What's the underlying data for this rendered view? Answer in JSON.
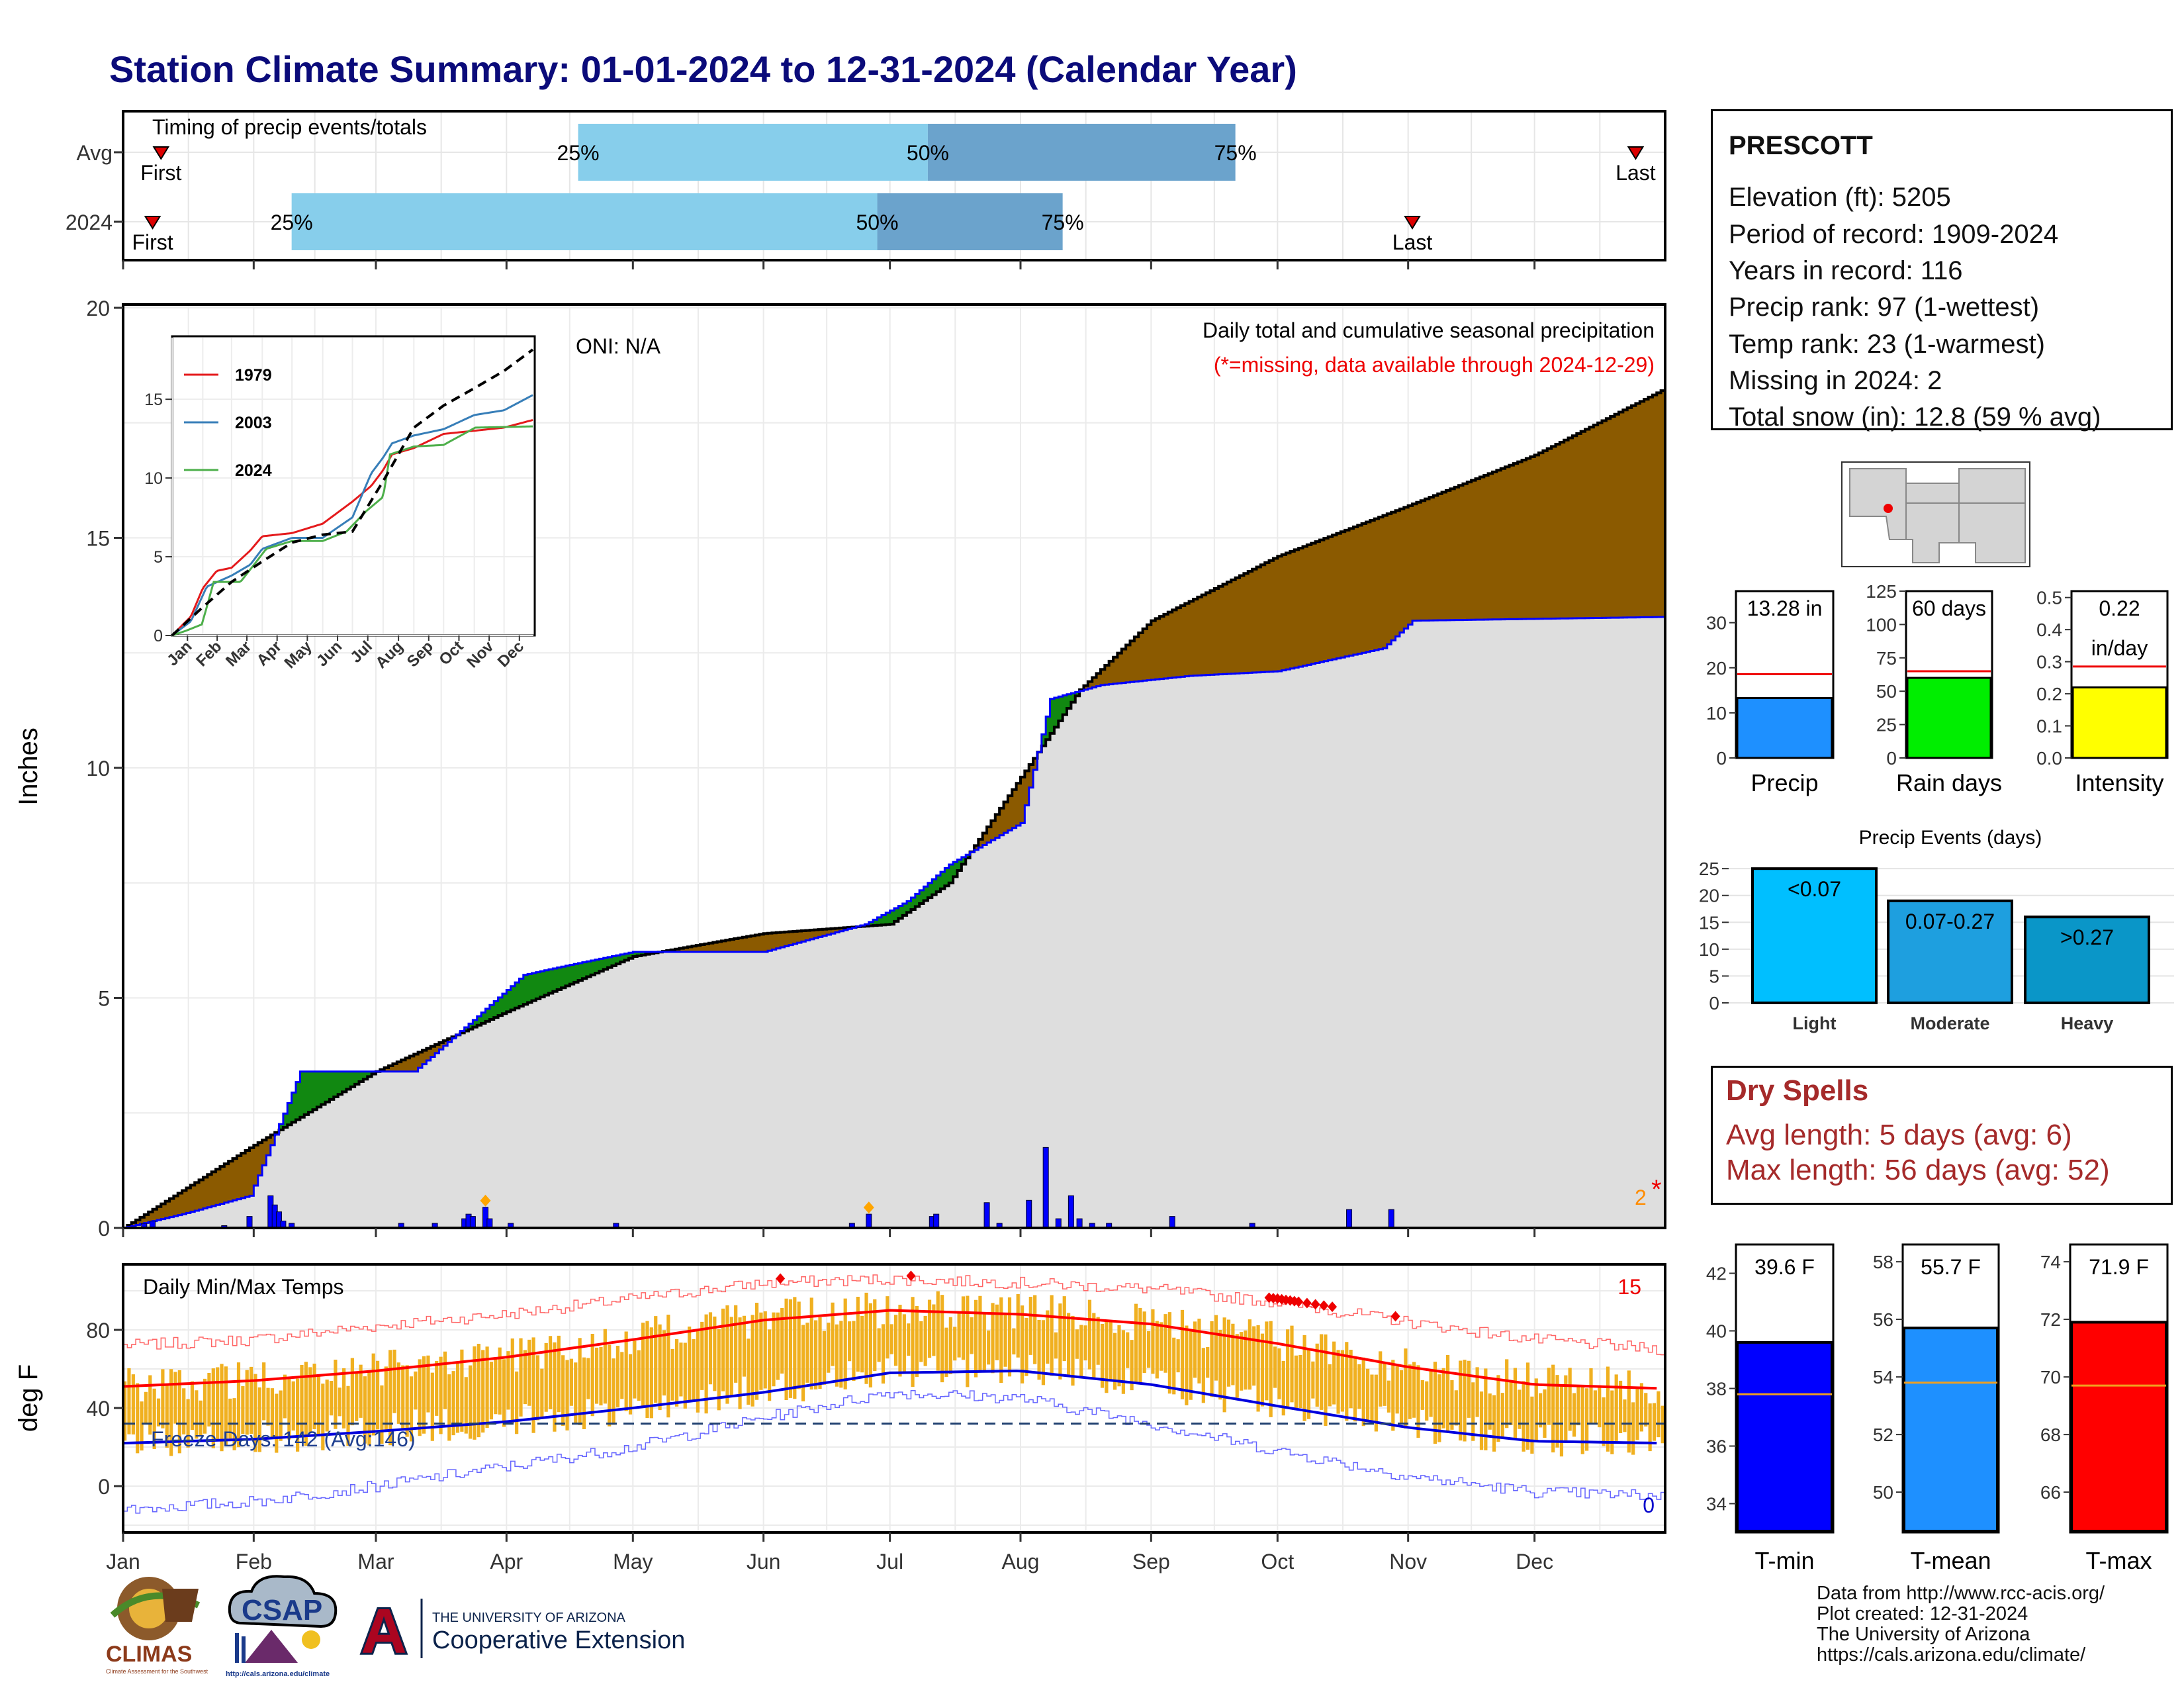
{
  "title": "Station Climate Summary: 01-01-2024 to 12-31-2024 (Calendar Year)",
  "timing": {
    "title": "Timing of precip events/totals",
    "rows": [
      {
        "label": "Avg",
        "first": "First",
        "last": "Last",
        "q25": "25%",
        "q50": "50%",
        "q75": "75%",
        "first_date": "2024-01-10",
        "last_date": "2024-12-25",
        "q25_date": "2024-04-18",
        "q50_date": "2024-07-10",
        "q75_date": "2024-09-21"
      },
      {
        "label": "2024",
        "first": "First",
        "last": "Last",
        "q25": "25%",
        "q50": "50%",
        "q75": "75%",
        "first_date": "2024-01-08",
        "last_date": "2024-11-02",
        "q25_date": "2024-02-10",
        "q50_date": "2024-06-28",
        "q75_date": "2024-08-11"
      }
    ]
  },
  "month_labels": [
    "Jan",
    "Feb",
    "Mar",
    "Apr",
    "May",
    "Jun",
    "Jul",
    "Aug",
    "Sep",
    "Oct",
    "Nov",
    "Dec"
  ],
  "precip_panel": {
    "ylabel": "Inches",
    "y_ticks": [
      "0",
      "5",
      "10",
      "15",
      "20"
    ],
    "oni": "ONI: N/A",
    "title": "Daily total and cumulative seasonal precipitation",
    "missing_note": "(*=missing, data available through 2024-12-29)",
    "missing_count": "2",
    "missing_star": "*"
  },
  "inset": {
    "y_ticks": [
      "0",
      "5",
      "10",
      "15"
    ],
    "month_ticks": [
      "Jan",
      "Feb",
      "Mar",
      "Apr",
      "May",
      "Jun",
      "Jul",
      "Aug",
      "Sep",
      "Oct",
      "Nov",
      "Dec"
    ],
    "legend": [
      "1979",
      "2003",
      "2024"
    ]
  },
  "temp_panel": {
    "ylabel": "deg F",
    "title": "Daily Min/Max Temps",
    "y_ticks": [
      "0",
      "40",
      "80"
    ],
    "freeze": "Freeze Days: 142 (Avg:146)",
    "record_high_count": "15",
    "record_low_count": "0"
  },
  "station": {
    "name": "PRESCOTT",
    "lines": [
      "Elevation (ft): 5205",
      "Period of record: 1909-2024",
      "Years in record: 116",
      "Precip rank: 97 (1-wettest)",
      "Temp rank: 23 (1-warmest)",
      "Missing in 2024: 2",
      "Total snow (in): 12.8 (59 % avg)"
    ]
  },
  "summary_bars": [
    {
      "label": "Precip",
      "value_text": "13.28 in",
      "value": 13.28,
      "avg": 18.6,
      "ymax": 37,
      "ticks": [
        "0",
        "10",
        "20",
        "30"
      ],
      "tick_values": [
        0,
        10,
        20,
        30
      ],
      "color": "#1e90ff"
    },
    {
      "label": "Rain days",
      "value_text": "60 days",
      "value": 60,
      "avg": 65,
      "ymax": 125,
      "ticks": [
        "0",
        "25",
        "50",
        "75",
        "100",
        "125"
      ],
      "tick_values": [
        0,
        25,
        50,
        75,
        100,
        125
      ],
      "color": "#00ee00"
    },
    {
      "label": "Intensity",
      "value_text": "0.22",
      "value_text2": "in/day",
      "value": 0.22,
      "avg": 0.285,
      "ymax": 0.52,
      "ticks": [
        "0.0",
        "0.1",
        "0.2",
        "0.3",
        "0.4",
        "0.5"
      ],
      "tick_values": [
        0,
        0.1,
        0.2,
        0.3,
        0.4,
        0.5
      ],
      "color": "#ffff00"
    }
  ],
  "precip_events": {
    "title": "Precip Events (days)",
    "y_ticks": [
      "0",
      "5",
      "10",
      "15",
      "20",
      "25"
    ],
    "bars": [
      {
        "category": "Light",
        "label": "<0.07",
        "value": 25,
        "color": "#00bfff"
      },
      {
        "category": "Moderate",
        "label": "0.07-0.27",
        "value": 19,
        "color": "#1e9fdf"
      },
      {
        "category": "Heavy",
        "label": ">0.27",
        "value": 16,
        "color": "#0a96c8"
      }
    ]
  },
  "dry_spells": {
    "title": "Dry Spells",
    "avg_length": "Avg length: 5 days (avg: 6)",
    "max_length": "Max length: 56 days (avg: 52)"
  },
  "temp_bars": [
    {
      "label": "T-min",
      "value_text": "39.6 F",
      "value": 39.6,
      "avg": 37.8,
      "ymin": 33,
      "ymax": 43,
      "ticks": [
        "34",
        "36",
        "38",
        "40",
        "42"
      ],
      "tick_values": [
        34,
        36,
        38,
        40,
        42
      ],
      "color": "#0000ff"
    },
    {
      "label": "T-mean",
      "value_text": "55.7 F",
      "value": 55.7,
      "avg": 53.8,
      "ymin": 48.6,
      "ymax": 58.6,
      "ticks": [
        "50",
        "52",
        "54",
        "56",
        "58"
      ],
      "tick_values": [
        50,
        52,
        54,
        56,
        58
      ],
      "color": "#1e90ff"
    },
    {
      "label": "T-max",
      "value_text": "71.9 F",
      "value": 71.9,
      "avg": 69.7,
      "ymin": 64.6,
      "ymax": 74.6,
      "ticks": [
        "66",
        "68",
        "70",
        "72",
        "74"
      ],
      "tick_values": [
        66,
        68,
        70,
        72,
        74
      ],
      "color": "#ff0000"
    }
  ],
  "footer": [
    "Data from http://www.rcc-acis.org/",
    "Plot created: 12-31-2024",
    "The University of Arizona",
    "https://cals.arizona.edu/climate/"
  ],
  "logos": {
    "climas": "CLIMAS",
    "climas_sub": "Climate Assessment for the Southwest",
    "csap": "CSAP",
    "csap_url": "http://cals.arizona.edu/climate",
    "ua_letter": "A",
    "ua_line1": "THE UNIVERSITY OF ARIZONA",
    "ua_line2": "Cooperative Extension"
  },
  "chart_data": [
    {
      "type": "area",
      "title": "Daily total and cumulative seasonal precipitation",
      "ylabel": "Inches",
      "ylim": [
        0,
        20
      ],
      "x_unit": "date",
      "series": [
        {
          "name": "2024",
          "x": [
            "2024-01-01",
            "2024-01-15",
            "2024-01-31",
            "2024-02-05",
            "2024-02-12",
            "2024-03-10",
            "2024-03-25",
            "2024-04-05",
            "2024-04-15",
            "2024-05-01",
            "2024-06-01",
            "2024-06-25",
            "2024-07-05",
            "2024-07-15",
            "2024-08-01",
            "2024-08-08",
            "2024-08-20",
            "2024-09-10",
            "2024-10-01",
            "2024-10-26",
            "2024-11-02",
            "2024-12-31"
          ],
          "y": [
            0,
            0.3,
            0.7,
            1.8,
            3.4,
            3.4,
            4.6,
            5.5,
            5.7,
            6.0,
            6.0,
            6.6,
            7.1,
            7.9,
            8.8,
            11.5,
            11.8,
            12.0,
            12.1,
            12.6,
            13.2,
            13.28
          ]
        },
        {
          "name": "Average cumulative",
          "x": [
            "2024-01-01",
            "2024-02-01",
            "2024-03-01",
            "2024-04-01",
            "2024-05-01",
            "2024-06-01",
            "2024-07-01",
            "2024-07-15",
            "2024-08-01",
            "2024-08-15",
            "2024-09-01",
            "2024-10-01",
            "2024-11-01",
            "2024-12-01",
            "2024-12-31"
          ],
          "y": [
            0,
            1.8,
            3.4,
            4.7,
            5.9,
            6.4,
            6.6,
            7.5,
            9.8,
            11.7,
            13.2,
            14.6,
            15.7,
            16.8,
            18.2
          ]
        }
      ],
      "daily_bars": [
        {
          "x": "2024-01-06",
          "y": 0.1
        },
        {
          "x": "2024-01-08",
          "y": 0.15
        },
        {
          "x": "2024-01-25",
          "y": 0.05
        },
        {
          "x": "2024-01-31",
          "y": 0.25
        },
        {
          "x": "2024-02-05",
          "y": 0.7
        },
        {
          "x": "2024-02-06",
          "y": 0.5
        },
        {
          "x": "2024-02-07",
          "y": 0.35
        },
        {
          "x": "2024-02-08",
          "y": 0.15
        },
        {
          "x": "2024-02-10",
          "y": 0.1
        },
        {
          "x": "2024-03-07",
          "y": 0.1
        },
        {
          "x": "2024-03-15",
          "y": 0.1
        },
        {
          "x": "2024-03-22",
          "y": 0.2
        },
        {
          "x": "2024-03-23",
          "y": 0.3
        },
        {
          "x": "2024-03-24",
          "y": 0.25
        },
        {
          "x": "2024-03-27",
          "y": 0.45
        },
        {
          "x": "2024-03-28",
          "y": 0.2
        },
        {
          "x": "2024-04-02",
          "y": 0.1
        },
        {
          "x": "2024-04-27",
          "y": 0.1
        },
        {
          "x": "2024-06-22",
          "y": 0.1
        },
        {
          "x": "2024-06-26",
          "y": 0.3
        },
        {
          "x": "2024-07-11",
          "y": 0.25
        },
        {
          "x": "2024-07-12",
          "y": 0.3
        },
        {
          "x": "2024-07-24",
          "y": 0.55
        },
        {
          "x": "2024-07-27",
          "y": 0.1
        },
        {
          "x": "2024-08-03",
          "y": 0.6
        },
        {
          "x": "2024-08-07",
          "y": 1.75
        },
        {
          "x": "2024-08-10",
          "y": 0.2
        },
        {
          "x": "2024-08-13",
          "y": 0.7
        },
        {
          "x": "2024-08-15",
          "y": 0.2
        },
        {
          "x": "2024-08-18",
          "y": 0.1
        },
        {
          "x": "2024-08-22",
          "y": 0.1
        },
        {
          "x": "2024-09-06",
          "y": 0.25
        },
        {
          "x": "2024-09-25",
          "y": 0.1
        },
        {
          "x": "2024-10-18",
          "y": 0.4
        },
        {
          "x": "2024-10-28",
          "y": 0.4
        }
      ]
    },
    {
      "type": "line",
      "title": "",
      "ylim": [
        0,
        19
      ],
      "x_unit": "date",
      "series": [
        {
          "name": "1979",
          "x": [
            "2024-01-01",
            "2024-01-20",
            "2024-02-01",
            "2024-02-15",
            "2024-03-01",
            "2024-03-20",
            "2024-04-01",
            "2024-05-01",
            "2024-06-01",
            "2024-07-01",
            "2024-07-20",
            "2024-08-01",
            "2024-08-10",
            "2024-09-01",
            "2024-10-01",
            "2024-11-01",
            "2024-12-01",
            "2024-12-31"
          ],
          "y": [
            0,
            1.2,
            3.0,
            4.1,
            4.3,
            5.4,
            6.3,
            6.5,
            7.1,
            8.5,
            9.5,
            10.5,
            11.5,
            11.9,
            12.8,
            13.0,
            13.2,
            13.7
          ]
        },
        {
          "name": "2003",
          "x": [
            "2024-01-01",
            "2024-01-20",
            "2024-02-05",
            "2024-03-01",
            "2024-03-20",
            "2024-04-01",
            "2024-05-01",
            "2024-06-01",
            "2024-07-01",
            "2024-07-20",
            "2024-08-01",
            "2024-08-10",
            "2024-09-01",
            "2024-10-01",
            "2024-11-01",
            "2024-12-01",
            "2024-12-31"
          ],
          "y": [
            0,
            0.9,
            3.1,
            3.8,
            4.5,
            5.5,
            6.2,
            6.2,
            7.5,
            10.3,
            11.3,
            12.2,
            12.7,
            13.1,
            14.0,
            14.3,
            15.3
          ]
        },
        {
          "name": "2024",
          "x": [
            "2024-01-01",
            "2024-01-15",
            "2024-01-31",
            "2024-02-05",
            "2024-02-12",
            "2024-03-10",
            "2024-03-25",
            "2024-04-05",
            "2024-05-01",
            "2024-06-01",
            "2024-06-25",
            "2024-07-15",
            "2024-08-01",
            "2024-08-08",
            "2024-09-01",
            "2024-10-01",
            "2024-11-02",
            "2024-12-31"
          ],
          "y": [
            0,
            0.3,
            0.7,
            1.8,
            3.4,
            3.4,
            4.6,
            5.5,
            6.0,
            6.0,
            6.6,
            7.9,
            8.8,
            11.5,
            12.0,
            12.1,
            13.2,
            13.28
          ]
        },
        {
          "name": "Average cumulative",
          "x": [
            "2024-01-01",
            "2024-02-01",
            "2024-03-01",
            "2024-04-01",
            "2024-05-01",
            "2024-06-01",
            "2024-07-01",
            "2024-08-01",
            "2024-09-01",
            "2024-10-01",
            "2024-11-01",
            "2024-12-01",
            "2024-12-31"
          ],
          "y": [
            0,
            1.8,
            3.4,
            4.7,
            5.9,
            6.4,
            6.6,
            9.8,
            13.2,
            14.6,
            15.7,
            16.8,
            18.2
          ]
        }
      ]
    },
    {
      "type": "line",
      "title": "Daily Min/Max Temps",
      "ylabel": "deg F",
      "ylim": [
        -25,
        110
      ],
      "x_unit": "date",
      "series": [
        {
          "name": "Average max",
          "x": [
            "2024-01-01",
            "2024-02-01",
            "2024-03-01",
            "2024-04-01",
            "2024-05-01",
            "2024-06-01",
            "2024-07-01",
            "2024-08-01",
            "2024-09-01",
            "2024-10-01",
            "2024-11-01",
            "2024-12-01",
            "2024-12-31"
          ],
          "y": [
            51,
            54,
            59,
            66,
            75,
            85,
            90,
            88,
            83,
            73,
            61,
            52,
            50
          ]
        },
        {
          "name": "Average min",
          "x": [
            "2024-01-01",
            "2024-02-01",
            "2024-03-01",
            "2024-04-01",
            "2024-05-01",
            "2024-06-01",
            "2024-07-01",
            "2024-08-01",
            "2024-09-01",
            "2024-10-01",
            "2024-11-01",
            "2024-12-01",
            "2024-12-31"
          ],
          "y": [
            22,
            24,
            28,
            33,
            40,
            48,
            58,
            59,
            52,
            41,
            30,
            23,
            22
          ]
        },
        {
          "name": "Record max",
          "x": [
            "2024-01-01",
            "2024-02-01",
            "2024-03-01",
            "2024-04-01",
            "2024-05-01",
            "2024-06-01",
            "2024-07-01",
            "2024-08-01",
            "2024-09-01",
            "2024-10-01",
            "2024-11-01",
            "2024-12-01",
            "2024-12-31"
          ],
          "y": [
            72,
            75,
            82,
            88,
            96,
            104,
            106,
            104,
            101,
            94,
            84,
            75,
            70
          ]
        },
        {
          "name": "Record min",
          "x": [
            "2024-01-01",
            "2024-02-01",
            "2024-03-01",
            "2024-04-01",
            "2024-05-01",
            "2024-06-01",
            "2024-07-01",
            "2024-08-01",
            "2024-09-01",
            "2024-10-01",
            "2024-11-01",
            "2024-12-01",
            "2024-12-31"
          ],
          "y": [
            -12,
            -8,
            0,
            10,
            20,
            35,
            48,
            45,
            32,
            18,
            5,
            -3,
            -5
          ]
        }
      ],
      "freeze_line": 32,
      "record_high_dates": [
        "2024-06-05",
        "2024-07-06",
        "2024-09-29",
        "2024-09-30",
        "2024-10-01",
        "2024-10-02",
        "2024-10-03",
        "2024-10-04",
        "2024-10-05",
        "2024-10-06",
        "2024-10-08",
        "2024-10-10",
        "2024-10-12",
        "2024-10-14",
        "2024-10-29"
      ]
    }
  ]
}
